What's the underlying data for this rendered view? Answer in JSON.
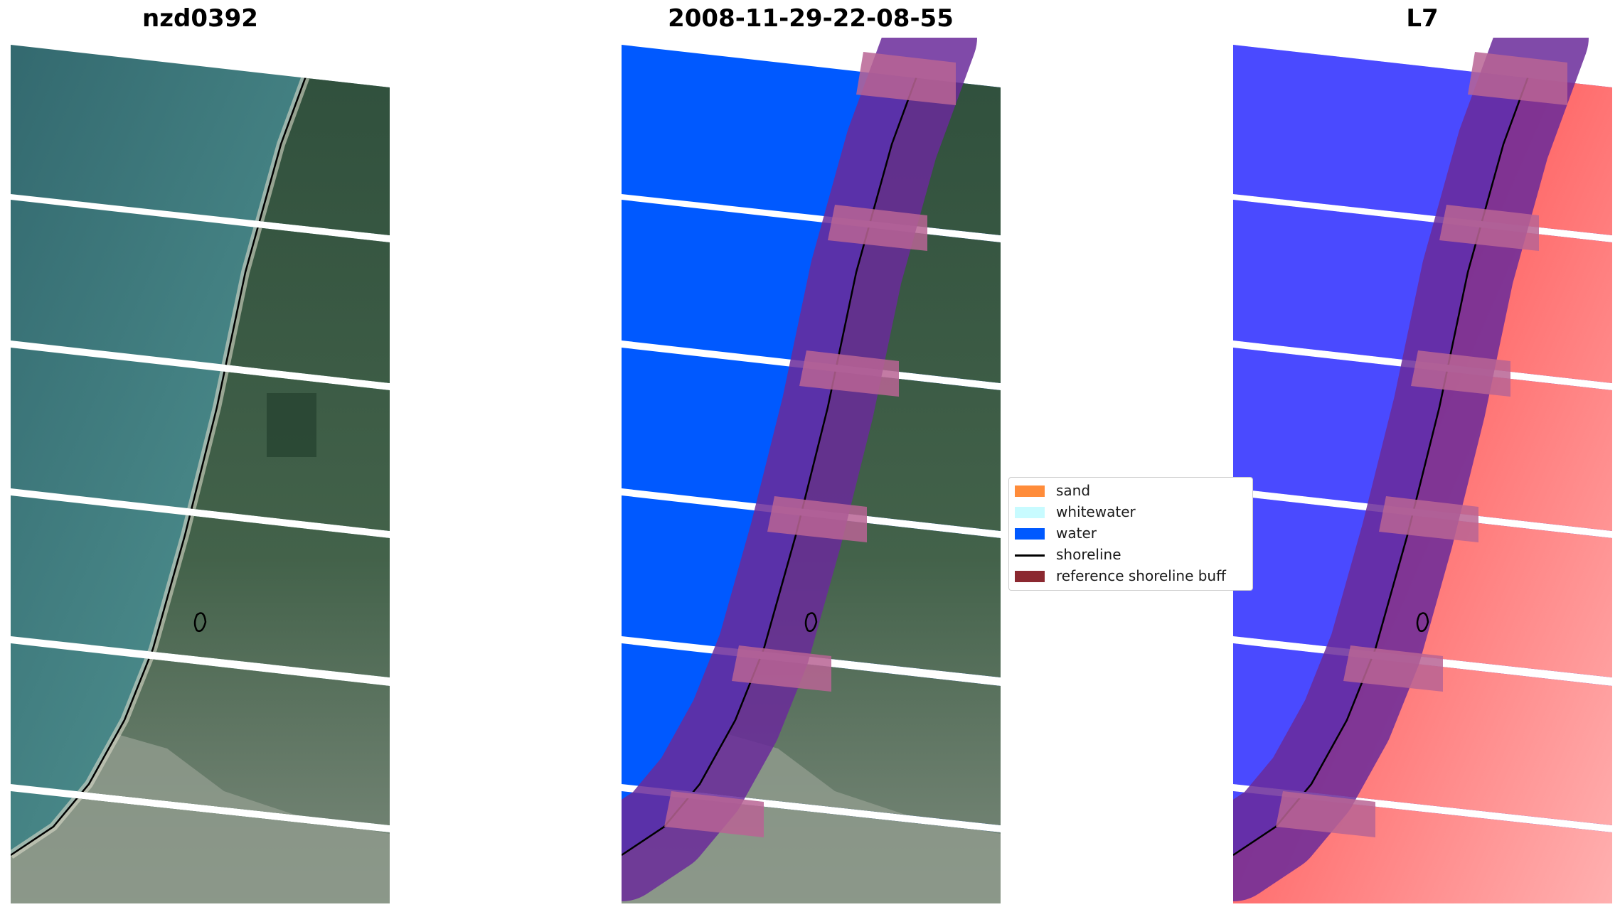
{
  "panels": [
    {
      "title": "nzd0392"
    },
    {
      "title": "2008-11-29-22-08-55"
    },
    {
      "title": "L7"
    }
  ],
  "legend": {
    "items": [
      {
        "label": "sand",
        "color": "#ff8c3a",
        "kind": "patch"
      },
      {
        "label": "whitewater",
        "color": "#c8fbff",
        "kind": "patch"
      },
      {
        "label": "water",
        "color": "#0059ff",
        "kind": "patch"
      },
      {
        "label": "shoreline",
        "color": "#000000",
        "kind": "line"
      },
      {
        "label": "reference shoreline buff",
        "color": "#8b2830",
        "kind": "patch"
      }
    ]
  },
  "colors": {
    "ocean": "#3e7a80",
    "land": "#3f5f48",
    "urban": "#8c9a8a",
    "water_class": "#0059ff",
    "buffer": "#6a2a9a",
    "index_water": "#3a3aff",
    "index_land": "#ff3a3a"
  }
}
